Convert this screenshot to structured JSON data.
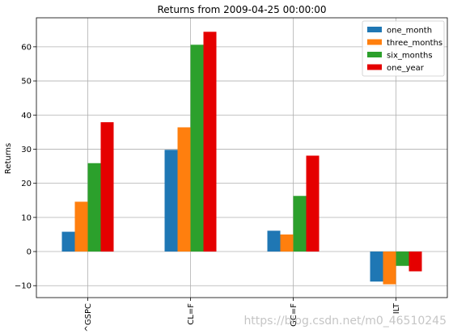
{
  "chart_data": {
    "type": "bar",
    "title": "Returns from 2009-04-25 00:00:00",
    "xlabel": "",
    "ylabel": "Returns",
    "categories": [
      "^GSPC",
      "CL=F",
      "GC=F",
      "ILT"
    ],
    "series": [
      {
        "name": "one_month",
        "values": [
          5.8,
          29.8,
          6.1,
          -8.8
        ],
        "color": "#1f77b4"
      },
      {
        "name": "three_months",
        "values": [
          14.6,
          36.4,
          5.0,
          -9.6
        ],
        "color": "#ff7f0e"
      },
      {
        "name": "six_months",
        "values": [
          25.9,
          60.6,
          16.3,
          -4.2
        ],
        "color": "#2ca02c"
      },
      {
        "name": "one_year",
        "values": [
          37.9,
          64.4,
          28.1,
          -5.8
        ],
        "color": "#e50000"
      }
    ],
    "ylim": [
      -13.5,
      68.5
    ],
    "yticks": [
      -10,
      0,
      10,
      20,
      30,
      40,
      50,
      60
    ],
    "grid": true,
    "legend_position": "top-right"
  },
  "watermark": "https://blog.csdn.net/m0_46510245"
}
